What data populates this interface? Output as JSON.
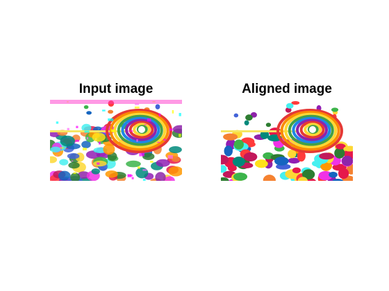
{
  "panels": [
    {
      "title": "Input image"
    },
    {
      "title": "Aligned image"
    }
  ],
  "colors": {
    "background": "#ffffff",
    "title": "#000000"
  }
}
